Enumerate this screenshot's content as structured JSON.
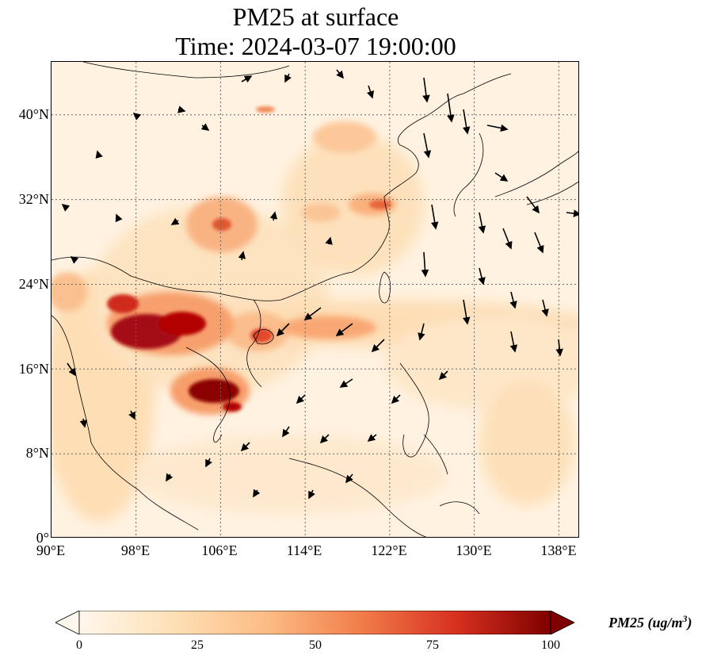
{
  "title": {
    "line1": "PM25 at surface",
    "line2": "Time: 2024-03-07 19:00:00"
  },
  "map": {
    "lat_labels": [
      "40°N",
      "32°N",
      "24°N",
      "16°N",
      "8°N",
      "0°"
    ],
    "lon_labels": [
      "90°E",
      "98°E",
      "106°E",
      "114°E",
      "122°E",
      "130°E",
      "138°E"
    ],
    "lat_range": [
      0,
      45
    ],
    "lon_range": [
      90,
      140
    ],
    "gridlines": "dotted",
    "variable": "PM25",
    "wind_vectors": true
  },
  "colorbar": {
    "ticks": [
      "0",
      "25",
      "50",
      "75",
      "100"
    ],
    "range": [
      0,
      100
    ],
    "colormap": "OrRd",
    "label_main": "PM25 (ug/m",
    "label_sup": "3",
    "label_end": ")",
    "extend": "both"
  },
  "colors": {
    "low": "#fff7ec",
    "mid": "#fdbb84",
    "high": "#d7301f",
    "max": "#7f0000"
  }
}
